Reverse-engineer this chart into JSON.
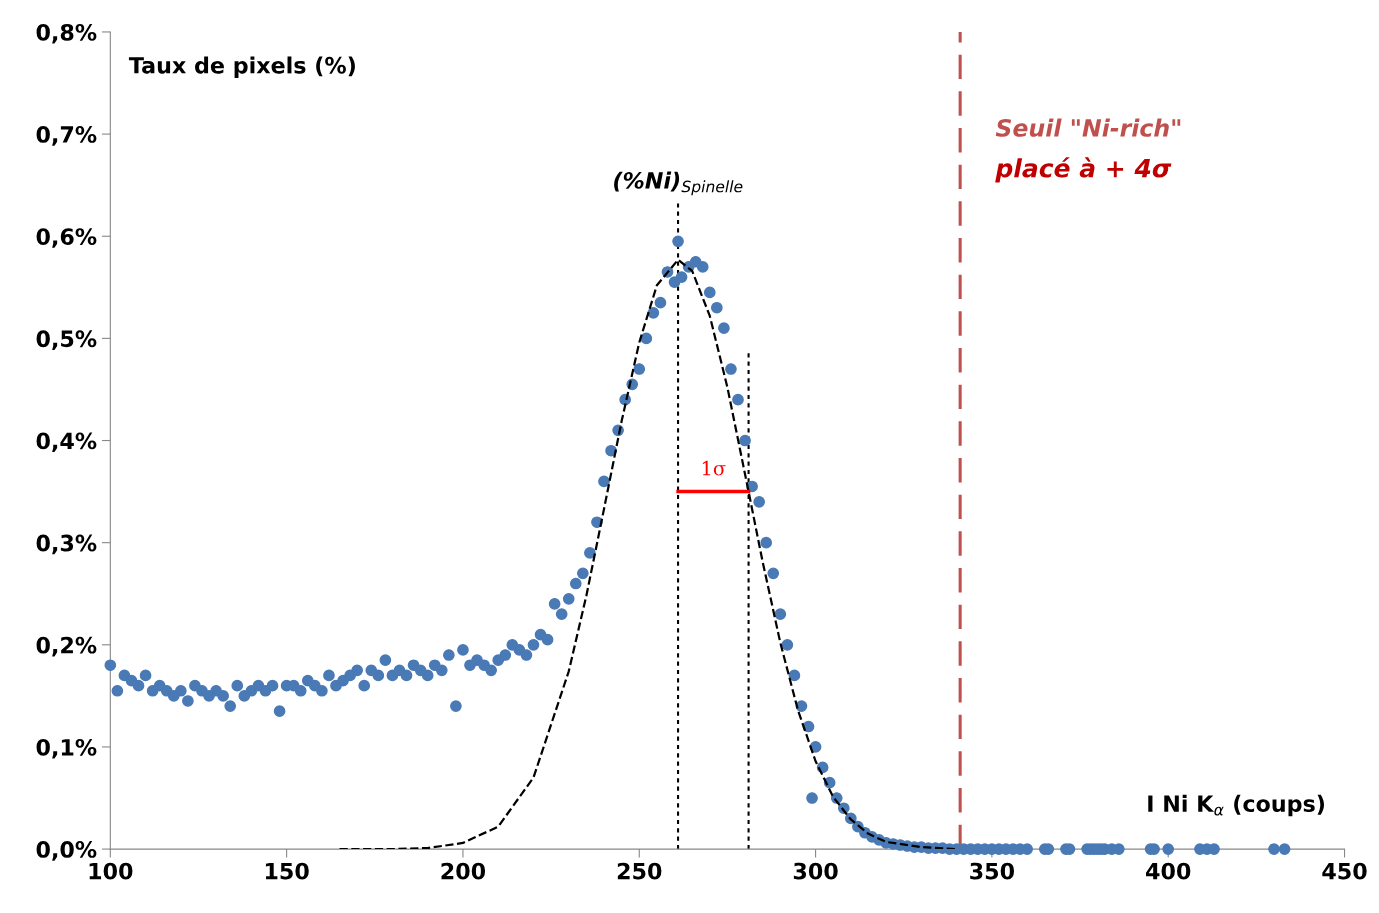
{
  "chart_data": {
    "type": "scatter",
    "xlabel": "I Ni K$_{α}$ (coups)",
    "ylabel": "Taux de pixels (%)",
    "xlim": [
      100,
      450
    ],
    "xticks": [
      100,
      150,
      200,
      250,
      300,
      350,
      400,
      450
    ],
    "ylim": [
      0,
      0.8
    ],
    "yticks": [
      {
        "value": 0,
        "label": "0,0%"
      },
      {
        "value": 0.1,
        "label": "0,1%"
      },
      {
        "value": 0.2,
        "label": "0,2%"
      },
      {
        "value": 0.3,
        "label": "0,3%"
      },
      {
        "value": 0.4,
        "label": "0,4%"
      },
      {
        "value": 0.5,
        "label": "0,5%"
      },
      {
        "value": 0.6,
        "label": "0,6%"
      },
      {
        "value": 0.7,
        "label": "0,7%"
      },
      {
        "value": 0.8,
        "label": "0,8%"
      }
    ],
    "grid": false,
    "legend": false,
    "marker": "circle",
    "series": [
      {
        "color": "#4a7ab5",
        "x": [
          100,
          102,
          104,
          106,
          108,
          110,
          112,
          114,
          116,
          118,
          120,
          122,
          124,
          126,
          128,
          130,
          132,
          134,
          136,
          138,
          140,
          142,
          144,
          146,
          148,
          150,
          152,
          154,
          156,
          158,
          160,
          162,
          164,
          166,
          168,
          170,
          172,
          174,
          176,
          178,
          180,
          182,
          184,
          186,
          188,
          190,
          192,
          194,
          196,
          198,
          200,
          202,
          204,
          206,
          208,
          210,
          212,
          214,
          216,
          218,
          220,
          222,
          224,
          226,
          228,
          230,
          232,
          234,
          236,
          238,
          240,
          242,
          244,
          246,
          248,
          250,
          252,
          254,
          256,
          258,
          260,
          261,
          262,
          264,
          266,
          268,
          270,
          272,
          274,
          276,
          278,
          280,
          282,
          284,
          286,
          288,
          290,
          292,
          294,
          296,
          298,
          299,
          300,
          302,
          304,
          306,
          308,
          310,
          312,
          314,
          316,
          318,
          320,
          322,
          324,
          326,
          328,
          330,
          332,
          334,
          336,
          338,
          340,
          342,
          344,
          346,
          348,
          350,
          352,
          354,
          356,
          358,
          360,
          365,
          366,
          371,
          372,
          377,
          378,
          379,
          380,
          381,
          382,
          384,
          386,
          395,
          396,
          400,
          409,
          411,
          413,
          430,
          433
        ],
        "values": [
          0.18,
          0.155,
          0.17,
          0.165,
          0.16,
          0.17,
          0.155,
          0.16,
          0.155,
          0.15,
          0.155,
          0.145,
          0.16,
          0.155,
          0.15,
          0.155,
          0.15,
          0.14,
          0.16,
          0.15,
          0.155,
          0.16,
          0.155,
          0.16,
          0.135,
          0.16,
          0.16,
          0.155,
          0.165,
          0.16,
          0.155,
          0.17,
          0.16,
          0.165,
          0.17,
          0.175,
          0.16,
          0.175,
          0.17,
          0.185,
          0.17,
          0.175,
          0.17,
          0.18,
          0.175,
          0.17,
          0.18,
          0.175,
          0.19,
          0.14,
          0.195,
          0.18,
          0.185,
          0.18,
          0.175,
          0.185,
          0.19,
          0.2,
          0.195,
          0.19,
          0.2,
          0.21,
          0.205,
          0.24,
          0.23,
          0.245,
          0.26,
          0.27,
          0.29,
          0.32,
          0.36,
          0.39,
          0.41,
          0.44,
          0.455,
          0.47,
          0.5,
          0.525,
          0.535,
          0.565,
          0.555,
          0.595,
          0.56,
          0.57,
          0.575,
          0.57,
          0.545,
          0.53,
          0.51,
          0.47,
          0.44,
          0.4,
          0.355,
          0.34,
          0.3,
          0.27,
          0.23,
          0.2,
          0.17,
          0.14,
          0.12,
          0.05,
          0.1,
          0.08,
          0.065,
          0.05,
          0.04,
          0.03,
          0.022,
          0.016,
          0.012,
          0.009,
          0.006,
          0.005,
          0.004,
          0.003,
          0.002,
          0.002,
          0.001,
          0.001,
          0.001,
          0,
          0,
          0,
          0,
          0,
          0,
          0,
          0,
          0,
          0,
          0,
          0,
          0,
          0,
          0,
          0,
          0,
          0,
          0,
          0,
          0,
          0,
          0,
          0,
          0,
          0,
          0,
          0,
          0,
          0,
          0,
          0
        ]
      },
      {
        "type": "line",
        "color": "#000000",
        "line_style": "dashed",
        "marker": "none",
        "x": [
          165,
          180,
          190,
          200,
          210,
          220,
          230,
          235,
          240,
          245,
          250,
          255,
          261,
          265,
          270,
          275,
          281,
          285,
          290,
          295,
          300,
          305,
          310,
          315,
          320,
          330,
          340
        ],
        "values": [
          0,
          0,
          0.001,
          0.006,
          0.022,
          0.07,
          0.174,
          0.248,
          0.333,
          0.419,
          0.496,
          0.552,
          0.577,
          0.566,
          0.522,
          0.452,
          0.35,
          0.281,
          0.202,
          0.136,
          0.086,
          0.051,
          0.029,
          0.015,
          0.007,
          0.002,
          0
        ]
      },
      {
        "type": "line",
        "color": "#ff0000",
        "line_style": "solid",
        "marker": "none",
        "x": [
          261,
          281
        ],
        "values": [
          0.35,
          0.35
        ]
      }
    ],
    "ref_lines": [
      {
        "axis": "x",
        "value": 261,
        "label": "(%Ni)$_{Spinelle}$",
        "color": "#000000",
        "line_style": "dotted"
      },
      {
        "axis": "x",
        "value": 281,
        "color": "#000000",
        "line_style": "dotted"
      },
      {
        "axis": "x",
        "value": 341,
        "label": "Seuil \"Ni-rich\"",
        "color": "#c0504d",
        "line_style": "dashed"
      }
    ],
    "annotations": [
      {
        "text": "1σ",
        "x": 271,
        "y": 0.35
      },
      {
        "text": "placé à + 4σ",
        "x": 341,
        "y": 0.665
      }
    ]
  }
}
